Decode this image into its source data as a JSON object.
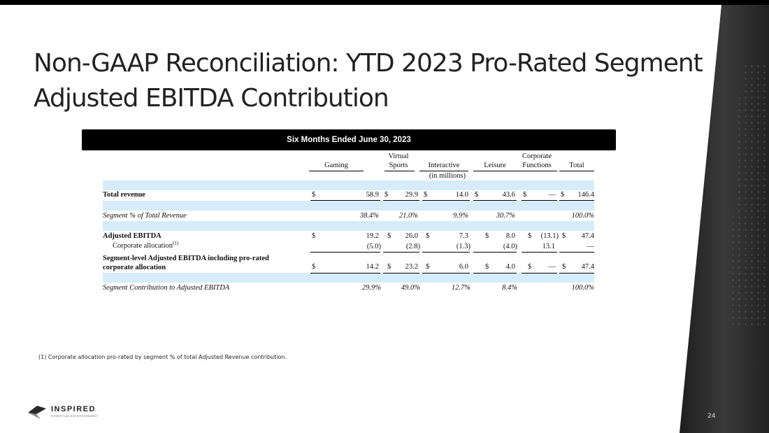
{
  "slide": {
    "title_line1": "Non-GAAP Reconciliation: YTD 2023 Pro-Rated Segment",
    "title_line2": "Adjusted EBITDA Contribution",
    "banner": "Six Months Ended June 30, 2023",
    "footnote": "(1) Corporate allocation pro-rated by segment % of total Adjusted Revenue contribution.",
    "page_number": "24"
  },
  "brand": {
    "name": "INSPIRED",
    "tagline": "ESSENTIAL ENTERTAINMENT",
    "accent": "#1f1f1f",
    "highlight_band": "#d6ecfa"
  },
  "table": {
    "units": "(in millions)",
    "columns": [
      {
        "line1": "",
        "line2": "Gaming"
      },
      {
        "line1": "Virtual",
        "line2": "Sports"
      },
      {
        "line1": "",
        "line2": "Interactive"
      },
      {
        "line1": "",
        "line2": "Leisure"
      },
      {
        "line1": "Corporate",
        "line2": "Functions"
      },
      {
        "line1": "",
        "line2": "Total"
      }
    ],
    "currency": "$",
    "rows": {
      "total_revenue": {
        "label": "Total revenue",
        "values": [
          "58.9",
          "29.9",
          "14.0",
          "43.6",
          "—",
          "146.4"
        ]
      },
      "segment_pct": {
        "label": "Segment % of Total Revenue",
        "values": [
          "38.4%",
          "21.0%",
          "9.9%",
          "30.7%",
          "",
          "100.0%"
        ]
      },
      "adjusted_ebitda": {
        "label": "Adjusted EBITDA",
        "values": [
          "19.2",
          "26.0",
          "7.3",
          "8.0",
          "(13.1)",
          "47.4"
        ]
      },
      "corporate_allocation": {
        "label": "Corporate allocation",
        "sup": "(1)",
        "values": [
          "(5.0)",
          "(2.8)",
          "(1.3)",
          "(4.0)",
          "13.1",
          "—"
        ]
      },
      "segment_level": {
        "label_line1": "Segment-level Adjusted EBITDA including pro-rated",
        "label_line2": "corporate allocation",
        "values": [
          "14.2",
          "23.2",
          "6.0",
          "4.0",
          "—",
          "47.4"
        ]
      },
      "segment_contribution": {
        "label": "Segment Contribution to Adjusted EBITDA",
        "values": [
          "29.9%",
          "49.0%",
          "12.7%",
          "8.4%",
          "",
          "100.0%"
        ]
      }
    }
  }
}
